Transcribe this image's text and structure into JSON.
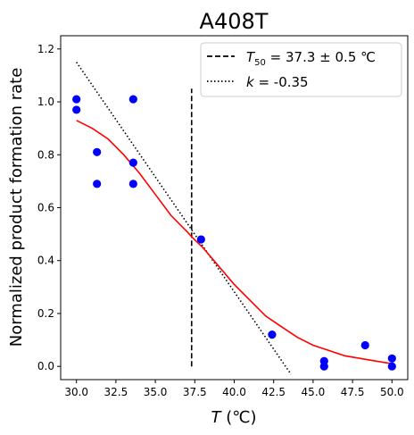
{
  "chart_data": {
    "type": "scatter",
    "title": "A408T",
    "xlabel_italic": "T",
    "xlabel_rest": " (℃)",
    "ylabel": "Normalized product formation rate",
    "xlim": [
      29.0,
      51.0
    ],
    "ylim": [
      -0.05,
      1.25
    ],
    "xticks": [
      30.0,
      32.5,
      35.0,
      37.5,
      40.0,
      42.5,
      45.0,
      47.5,
      50.0
    ],
    "xtick_labels": [
      "30.0",
      "32.5",
      "35.0",
      "37.5",
      "40.0",
      "42.5",
      "45.0",
      "47.5",
      "50.0"
    ],
    "yticks": [
      0.0,
      0.2,
      0.4,
      0.6,
      0.8,
      1.0,
      1.2
    ],
    "ytick_labels": [
      "0.0",
      "0.2",
      "0.4",
      "0.6",
      "0.8",
      "1.0",
      "1.2"
    ],
    "grid": false,
    "legend_position": "top-right",
    "points": {
      "color": "#0000ff",
      "x": [
        30.0,
        30.0,
        31.3,
        31.3,
        33.6,
        33.6,
        33.6,
        37.9,
        42.4,
        45.7,
        45.7,
        48.3,
        50.0,
        50.0
      ],
      "y": [
        1.01,
        0.97,
        0.81,
        0.69,
        1.01,
        0.77,
        0.69,
        0.48,
        0.12,
        0.02,
        0.0,
        0.08,
        0.03,
        0.0
      ]
    },
    "fit_curve": {
      "color": "#ff0000",
      "x": [
        30,
        31,
        32,
        33,
        34,
        35,
        36,
        37,
        37.3,
        38,
        39,
        40,
        41,
        42,
        43,
        44,
        45,
        46,
        47,
        48,
        49,
        50
      ],
      "y": [
        0.93,
        0.9,
        0.86,
        0.8,
        0.73,
        0.65,
        0.57,
        0.51,
        0.49,
        0.45,
        0.38,
        0.31,
        0.25,
        0.19,
        0.15,
        0.11,
        0.08,
        0.06,
        0.04,
        0.03,
        0.02,
        0.01
      ]
    },
    "t50_line": {
      "x": 37.3,
      "y_range": [
        0.0,
        1.05
      ],
      "legend_prefix": "T",
      "legend_sub": "50",
      "legend_rest": " = 37.3 ± 0.5 ℃"
    },
    "slope_line": {
      "x": [
        30.0,
        43.6
      ],
      "y": [
        1.15,
        -0.03
      ],
      "legend_italic": "k",
      "legend_rest": " = -0.35"
    }
  }
}
